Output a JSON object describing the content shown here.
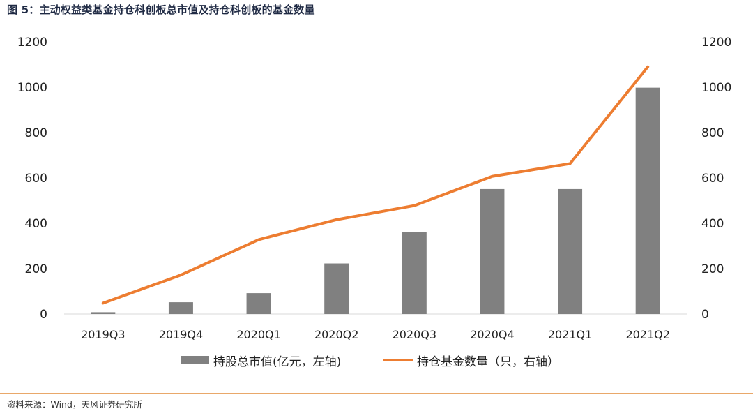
{
  "header": {
    "title": "图 5：主动权益类基金持仓科创板总市值及持仓科创板的基金数量"
  },
  "footer": {
    "source": "资料来源：Wind，天风证券研究所"
  },
  "chart_data": {
    "type": "bar",
    "categories": [
      "2019Q3",
      "2019Q4",
      "2020Q1",
      "2020Q2",
      "2020Q3",
      "2020Q4",
      "2021Q1",
      "2021Q2"
    ],
    "series": [
      {
        "name": "持股总市值(亿元，左轴)",
        "type": "bar",
        "axis": "left",
        "values": [
          8,
          52,
          92,
          223,
          362,
          551,
          551,
          998
        ]
      },
      {
        "name": "持仓基金数量（只，右轴）",
        "type": "line",
        "axis": "right",
        "values": [
          48,
          172,
          328,
          416,
          478,
          607,
          663,
          1090
        ]
      }
    ],
    "ylim_left": [
      0,
      1200
    ],
    "ylim_right": [
      0,
      1200
    ],
    "yticks": [
      0,
      200,
      400,
      600,
      800,
      1000,
      1200
    ],
    "grid": false,
    "legend": "bottom",
    "colors": {
      "bar": "#808080",
      "line": "#ed7d31",
      "axis": "#d9d9d9"
    }
  }
}
